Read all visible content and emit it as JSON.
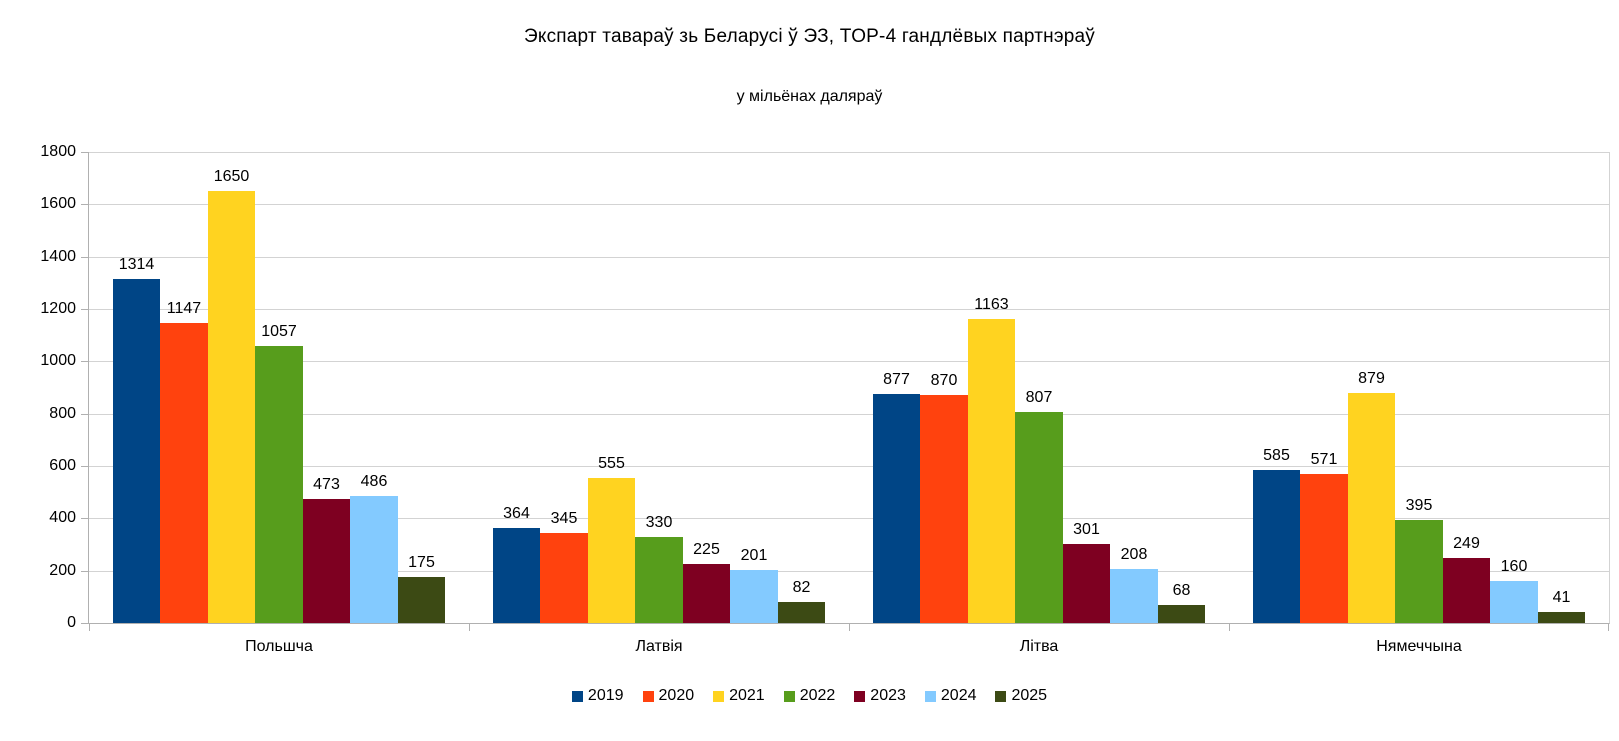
{
  "title": "Экспарт тавараў зь Беларусі ў ЭЗ, TOP-4 гандлёвых партнэраў",
  "subtitle": "у мільёнах даляраў",
  "chart_data": {
    "type": "bar",
    "title": "Экспарт тавараў зь Беларусі ў ЭЗ, TOP-4 гандлёвых партнэраў",
    "subtitle": "у мільёнах даляраў",
    "categories": [
      "Польшча",
      "Латвія",
      "Літва",
      "Нямеччына"
    ],
    "series": [
      {
        "name": "2019",
        "color": "#004586",
        "values": [
          1314,
          364,
          877,
          585
        ]
      },
      {
        "name": "2020",
        "color": "#FF420E",
        "values": [
          1147,
          345,
          870,
          571
        ]
      },
      {
        "name": "2021",
        "color": "#FFD320",
        "values": [
          1650,
          555,
          1163,
          879
        ]
      },
      {
        "name": "2022",
        "color": "#579D1C",
        "values": [
          1057,
          330,
          807,
          395
        ]
      },
      {
        "name": "2023",
        "color": "#7E0021",
        "values": [
          473,
          225,
          301,
          249
        ]
      },
      {
        "name": "2024",
        "color": "#83CAFF",
        "values": [
          486,
          201,
          208,
          160
        ]
      },
      {
        "name": "2025",
        "color": "#3C4A14",
        "values": [
          175,
          82,
          68,
          41
        ]
      }
    ],
    "xlabel": "",
    "ylabel": "",
    "ylim": [
      0,
      1800
    ],
    "ytick_step": 200,
    "grid": true,
    "legend_position": "bottom",
    "data_labels": true
  },
  "style_colors": {
    "background": "#ffffff",
    "gridline": "#d3d3d3",
    "axis": "#b0b0b0",
    "text": "#000000"
  }
}
